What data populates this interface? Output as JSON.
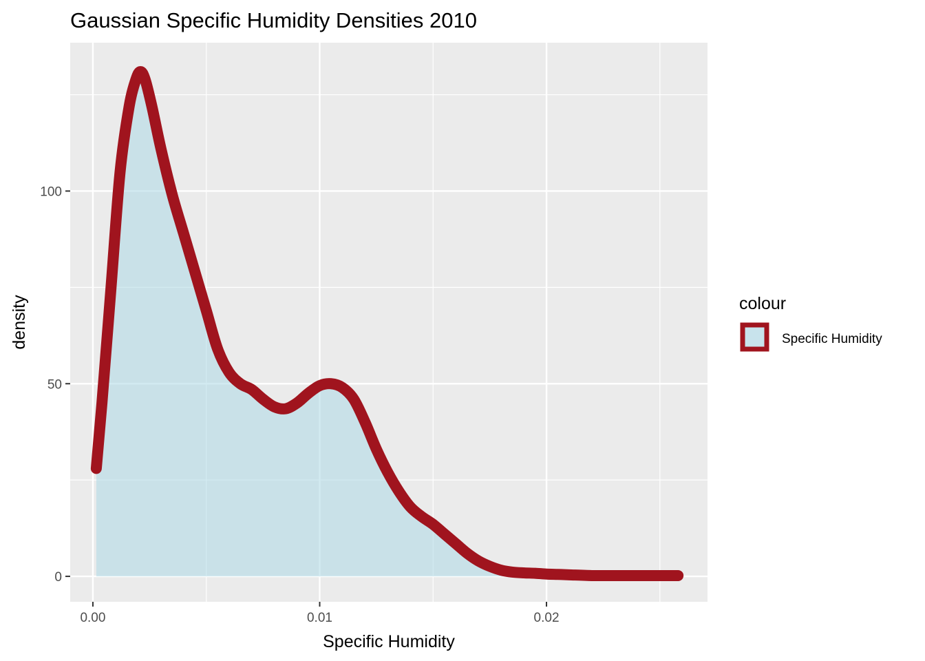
{
  "chart_data": {
    "type": "area",
    "title": "Gaussian Specific Humidity Densities 2010",
    "xlabel": "Specific Humidity",
    "ylabel": "density",
    "xlim": [
      -0.001,
      0.0271
    ],
    "ylim": [
      -6.6,
      138.5
    ],
    "x_ticks": [
      0.0,
      0.01,
      0.02
    ],
    "x_tick_labels": [
      "0.00",
      "0.01",
      "0.02"
    ],
    "y_ticks": [
      0,
      50,
      100
    ],
    "y_tick_labels": [
      "0",
      "50",
      "100"
    ],
    "grid": true,
    "legend": {
      "title": "colour",
      "position": "right",
      "entries": [
        "Specific Humidity"
      ]
    },
    "series": [
      {
        "name": "Specific Humidity",
        "line_color": "#a0141e",
        "fill_color": "#add8e6",
        "x": [
          0.00015,
          0.0004,
          0.0008,
          0.0012,
          0.0016,
          0.0019,
          0.0021,
          0.0023,
          0.0026,
          0.003,
          0.0035,
          0.004,
          0.0045,
          0.005,
          0.0055,
          0.006,
          0.0065,
          0.007,
          0.0075,
          0.008,
          0.0085,
          0.009,
          0.0095,
          0.01,
          0.0105,
          0.011,
          0.0115,
          0.012,
          0.0125,
          0.013,
          0.0135,
          0.014,
          0.0145,
          0.015,
          0.0155,
          0.016,
          0.0165,
          0.017,
          0.0175,
          0.018,
          0.0185,
          0.019,
          0.0195,
          0.02,
          0.0205,
          0.021,
          0.022,
          0.023,
          0.024,
          0.025,
          0.0258
        ],
        "y": [
          28,
          45,
          75,
          105,
          122,
          129,
          131,
          129,
          122,
          111,
          99,
          89,
          79,
          69,
          59,
          53,
          50,
          48.5,
          46,
          44,
          43.5,
          45,
          47.5,
          49.5,
          50,
          49,
          46,
          40,
          33,
          27,
          22,
          18,
          15.5,
          13.5,
          11,
          8.5,
          6,
          4,
          2.6,
          1.6,
          1.1,
          0.9,
          0.8,
          0.6,
          0.5,
          0.4,
          0.2,
          0.2,
          0.2,
          0.2,
          0.2
        ]
      }
    ]
  }
}
